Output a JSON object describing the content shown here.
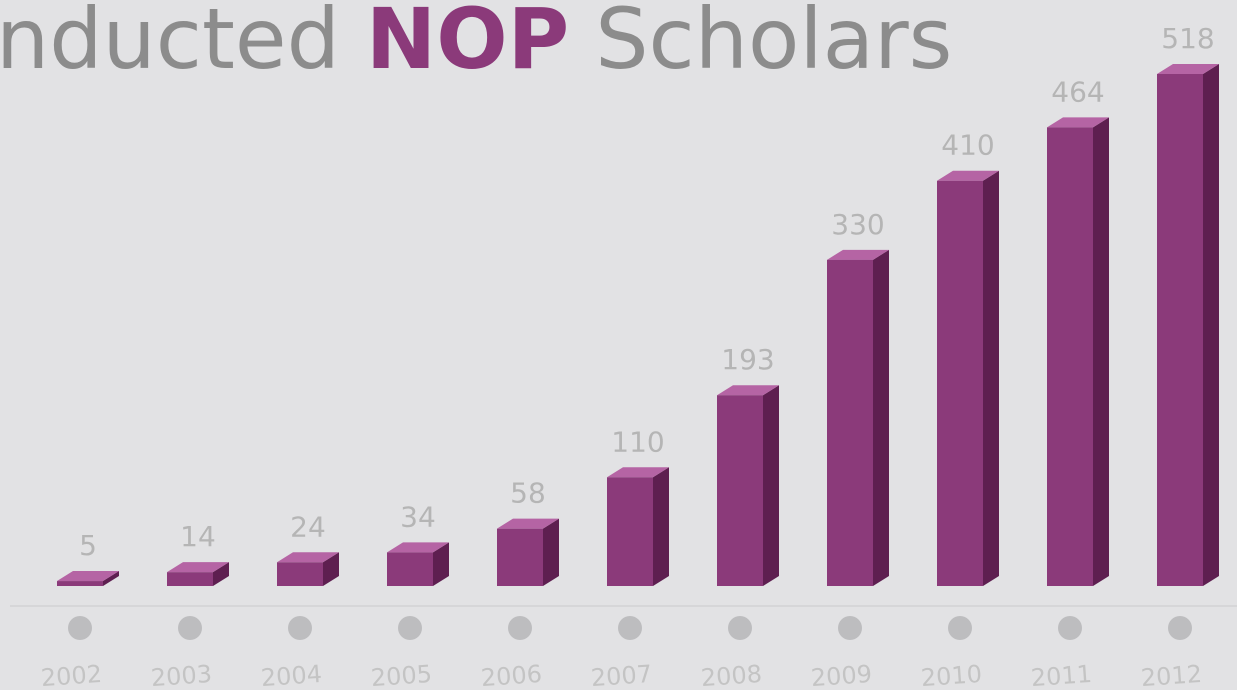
{
  "chart_data": {
    "type": "bar3d",
    "title": [
      "nducted",
      "NOP",
      "Scholars"
    ],
    "categories": [
      "2002",
      "2003",
      "2004",
      "2005",
      "2006",
      "2007",
      "2008",
      "2009",
      "2010",
      "2011",
      "2012"
    ],
    "values": [
      5,
      14,
      24,
      34,
      58,
      110,
      193,
      330,
      410,
      464,
      518
    ],
    "color": "#8b3a7a"
  }
}
